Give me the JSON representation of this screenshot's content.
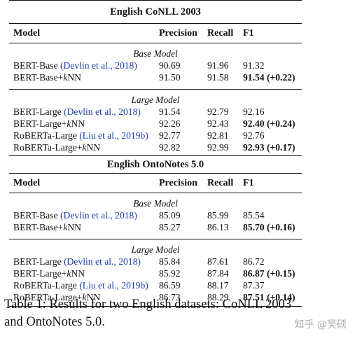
{
  "tables": [
    {
      "title": "English CoNLL 2003",
      "headers": [
        "Model",
        "Precision",
        "Recall",
        "F1"
      ],
      "groups": [
        {
          "label": "Base Model",
          "rows": [
            {
              "model": "BERT-Base ",
              "cite": "(Devlin et al., 2018)",
              "precision": "90.69",
              "recall": "91.96",
              "f1": "91.32",
              "bold": false
            },
            {
              "model_pre": "BERT-Base+",
              "model_k": "k",
              "model_post": "NN",
              "precision": "91.50",
              "recall": "91.58",
              "f1": "91.54 (+0.22)",
              "bold": true
            }
          ]
        },
        {
          "label": "Large Model",
          "rows": [
            {
              "model": "BERT-Large ",
              "cite": "(Devlin et al., 2018)",
              "precision": "91.54",
              "recall": "92.79",
              "f1": "92.16",
              "bold": false
            },
            {
              "model_pre": "BERT-Large+",
              "model_k": "k",
              "model_post": "NN",
              "precision": "92.26",
              "recall": "92.43",
              "f1": "92.40 (+0.24)",
              "bold": true
            },
            {
              "model": "RoBERTa-Large ",
              "cite": "(Liu et al., 2019b)",
              "precision": "92.77",
              "recall": "92.81",
              "f1": "92.76",
              "bold": false
            },
            {
              "model_pre": "RoBERTa-Large+",
              "model_k": "k",
              "model_post": "NN",
              "precision": "92.82",
              "recall": "92.99",
              "f1": "92.93 (+0.17)",
              "bold": true
            }
          ]
        }
      ]
    },
    {
      "title": "English OntoNotes 5.0",
      "headers": [
        "Model",
        "Precision",
        "Recall",
        "F1"
      ],
      "groups": [
        {
          "label": "Base Model",
          "rows": [
            {
              "model": "BERT-Base ",
              "cite": "(Devlin et al., 2018)",
              "precision": "85.09",
              "recall": "85.99",
              "f1": "85.54",
              "bold": false
            },
            {
              "model_pre": "BERT-Base+",
              "model_k": "k",
              "model_post": "NN",
              "precision": "85.27",
              "recall": "86.13",
              "f1": "85.70 (+0.16)",
              "bold": true
            }
          ]
        },
        {
          "label": "Large Model",
          "rows": [
            {
              "model": "BERT-Large ",
              "cite": "(Devlin et al., 2018)",
              "precision": "85.84",
              "recall": "87.61",
              "f1": "86.72",
              "bold": false
            },
            {
              "model_pre": "BERT-Large+",
              "model_k": "k",
              "model_post": "NN",
              "precision": "85.92",
              "recall": "87.84",
              "f1": "86.87 (+0.15)",
              "bold": true
            },
            {
              "model": "RoBERTa-Large ",
              "cite": "(Liu et al., 2019b)",
              "precision": "86.59",
              "recall": "88.17",
              "f1": "87.37",
              "bold": false
            },
            {
              "model_pre": "RoBERTa-Large+",
              "model_k": "k",
              "model_post": "NN",
              "precision": "86.73",
              "recall": "88.29",
              "f1": "87.51 (+0.14)",
              "bold": true
            }
          ]
        }
      ]
    }
  ],
  "caption": {
    "line1": "Table 1: Results for two English datasets: CoNLL 2003",
    "line2": "and OntoNotes 5.0."
  },
  "watermark": "知乎 @吴硕",
  "colors": {
    "citation": "#1a3fb0",
    "text": "#111111"
  }
}
